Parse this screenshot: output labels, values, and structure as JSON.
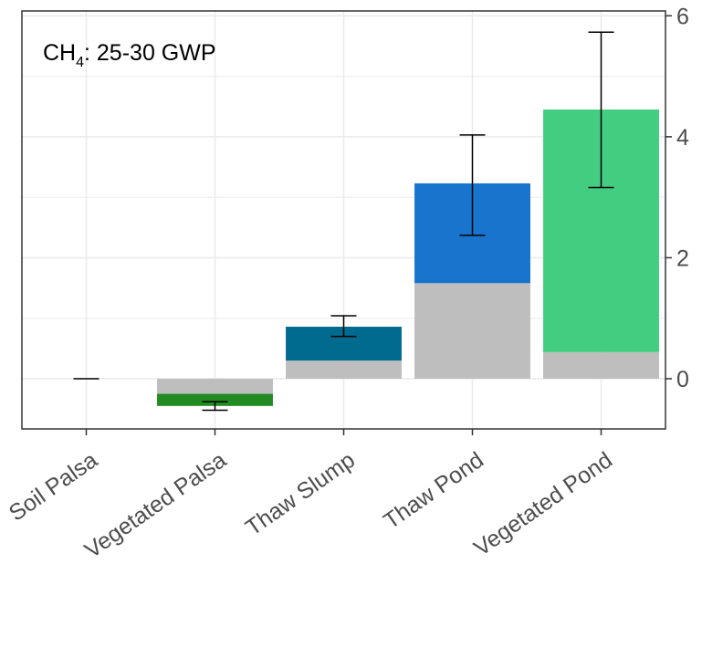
{
  "chart_data": {
    "type": "bar",
    "stacked": true,
    "annotation": {
      "prefix": "CH",
      "subscript": "4",
      "suffix": ": 25-30 GWP"
    },
    "categories": [
      "Soil Palsa",
      "Vegetated Palsa",
      "Thaw Slump",
      "Thaw Pond",
      "Vegetated Pond"
    ],
    "series": [
      {
        "color": "#bebebe",
        "values": [
          0,
          -0.25,
          0.3,
          1.58,
          0.44
        ]
      },
      {
        "colors": [
          "#bebebe",
          "#228b22",
          "#006b8f",
          "#1874cd",
          "#43cd80"
        ],
        "values": [
          0,
          -0.2,
          0.56,
          1.65,
          4.01
        ]
      }
    ],
    "totals": [
      0,
      -0.45,
      0.86,
      3.23,
      4.45
    ],
    "error_bars": {
      "low": [
        0,
        -0.52,
        0.7,
        2.37,
        3.16
      ],
      "high": [
        0,
        -0.38,
        1.04,
        4.03,
        5.73
      ]
    },
    "yticks": [
      0,
      2,
      4,
      6
    ],
    "ylim": [
      -0.83,
      6.08
    ],
    "y_axis_position": "right",
    "grid": true,
    "xlabel": "",
    "ylabel": ""
  }
}
